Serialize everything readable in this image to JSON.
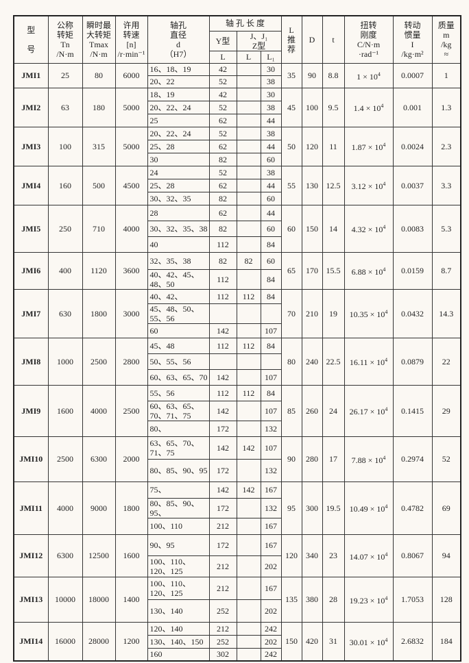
{
  "header": {
    "model": "型\n\n号",
    "tn": "公称\n转矩\nTn\n/N·m",
    "tmax": "瞬时最\n大转矩\nTmax\n/N·m",
    "speed": "许用\n转速\n[n]\n/r·min⁻¹",
    "bore": "轴孔\n直径\nd\n（H7）",
    "length_group": "轴 孔 长 度",
    "y_type": "Y型",
    "jz_type": "J、J₁\nZ型",
    "l_rec": "L\n推\n荐",
    "D": "D",
    "t": "t",
    "stiffness": "扭转\n刚度\nC/N·m\n·rad⁻¹",
    "inertia": "转动\n惯量\nI\n/kg·m²",
    "mass": "质量\nm\n/kg\n≈",
    "L": "L",
    "L1": "L₁"
  },
  "rows": [
    {
      "model": "JMI1",
      "tn": "25",
      "tmax": "80",
      "n": "6000",
      "L": "35",
      "D": "90",
      "t": "8.8",
      "C": "1 × 10",
      "I": "0.0007",
      "m": "1",
      "sub": [
        [
          "16、18、19",
          "42",
          "",
          "30"
        ],
        [
          "20、22",
          "52",
          "",
          "38"
        ]
      ]
    },
    {
      "model": "JMI2",
      "tn": "63",
      "tmax": "180",
      "n": "5000",
      "L": "45",
      "D": "100",
      "t": "9.5",
      "C": "1.4 × 10",
      "I": "0.001",
      "m": "1.3",
      "sub": [
        [
          "18、19",
          "42",
          "",
          "30"
        ],
        [
          "20、22、24",
          "52",
          "",
          "38"
        ],
        [
          "25",
          "62",
          "",
          "44"
        ]
      ]
    },
    {
      "model": "JMI3",
      "tn": "100",
      "tmax": "315",
      "n": "5000",
      "L": "50",
      "D": "120",
      "t": "11",
      "C": "1.87 × 10",
      "I": "0.0024",
      "m": "2.3",
      "sub": [
        [
          "20、22、24",
          "52",
          "",
          "38"
        ],
        [
          "25、28",
          "62",
          "",
          "44"
        ],
        [
          "30",
          "82",
          "",
          "60"
        ]
      ]
    },
    {
      "model": "JMI4",
      "tn": "160",
      "tmax": "500",
      "n": "4500",
      "L": "55",
      "D": "130",
      "t": "12.5",
      "C": "3.12 × 10",
      "I": "0.0037",
      "m": "3.3",
      "sub": [
        [
          "24",
          "52",
          "",
          "38"
        ],
        [
          "25、28",
          "62",
          "",
          "44"
        ],
        [
          "30、32、35",
          "82",
          "",
          "60"
        ]
      ]
    },
    {
      "model": "JMI5",
      "tn": "250",
      "tmax": "710",
      "n": "4000",
      "L": "60",
      "D": "150",
      "t": "14",
      "C": "4.32 × 10",
      "I": "0.0083",
      "m": "5.3",
      "sub": [
        [
          "28",
          "62",
          "",
          "44"
        ],
        [
          "30、32、35、38",
          "82",
          "",
          "60"
        ],
        [
          "40",
          "112",
          "",
          "84"
        ]
      ]
    },
    {
      "model": "JMI6",
      "tn": "400",
      "tmax": "1120",
      "n": "3600",
      "L": "65",
      "D": "170",
      "t": "15.5",
      "C": "6.88 × 10",
      "I": "0.0159",
      "m": "8.7",
      "sub": [
        [
          "32、35、38",
          "82",
          "82",
          "60"
        ],
        [
          "40、42、45、48、50",
          "112",
          "",
          "84"
        ]
      ]
    },
    {
      "model": "JMI7",
      "tn": "630",
      "tmax": "1800",
      "n": "3000",
      "L": "70",
      "D": "210",
      "t": "19",
      "C": "10.35 × 10",
      "I": "0.0432",
      "m": "14.3",
      "sub": [
        [
          "40、42、",
          "112",
          "112",
          "84"
        ],
        [
          "45、48、50、55、56",
          "",
          "",
          ""
        ],
        [
          "60",
          "142",
          "",
          "107"
        ]
      ]
    },
    {
      "model": "JMI8",
      "tn": "1000",
      "tmax": "2500",
      "n": "2800",
      "L": "80",
      "D": "240",
      "t": "22.5",
      "C": "16.11 × 10",
      "I": "0.0879",
      "m": "22",
      "sub": [
        [
          "45、48",
          "112",
          "112",
          "84"
        ],
        [
          "50、55、56",
          "",
          "",
          ""
        ],
        [
          "60、63、65、70",
          "142",
          "",
          "107"
        ]
      ]
    },
    {
      "model": "JMI9",
      "tn": "1600",
      "tmax": "4000",
      "n": "2500",
      "L": "85",
      "D": "260",
      "t": "24",
      "C": "26.17 × 10",
      "I": "0.1415",
      "m": "29",
      "sub": [
        [
          "55、56",
          "112",
          "112",
          "84"
        ],
        [
          "60、63、65、70、71、75",
          "142",
          "",
          "107"
        ],
        [
          "80、",
          "172",
          "",
          "132"
        ]
      ]
    },
    {
      "model": "JMI10",
      "tn": "2500",
      "tmax": "6300",
      "n": "2000",
      "L": "90",
      "D": "280",
      "t": "17",
      "C": "7.88 × 10",
      "I": "0.2974",
      "m": "52",
      "sub": [
        [
          "63、65、70、71、75",
          "142",
          "142",
          "107"
        ],
        [
          "80、85、90、95",
          "172",
          "",
          "132"
        ]
      ]
    },
    {
      "model": "JMI11",
      "tn": "4000",
      "tmax": "9000",
      "n": "1800",
      "L": "95",
      "D": "300",
      "t": "19.5",
      "C": "10.49 × 10",
      "I": "0.4782",
      "m": "69",
      "sub": [
        [
          "75、",
          "142",
          "142",
          "167"
        ],
        [
          "80、85、90、95、",
          "172",
          "",
          "132"
        ],
        [
          "100、110",
          "212",
          "",
          "167"
        ]
      ]
    },
    {
      "model": "JMI12",
      "tn": "6300",
      "tmax": "12500",
      "n": "1600",
      "L": "120",
      "D": "340",
      "t": "23",
      "C": "14.07 × 10",
      "I": "0.8067",
      "m": "94",
      "sub": [
        [
          "90、95",
          "172",
          "",
          "167"
        ],
        [
          "100、110、120、125",
          "212",
          "",
          "202"
        ]
      ]
    },
    {
      "model": "JMI13",
      "tn": "10000",
      "tmax": "18000",
      "n": "1400",
      "L": "135",
      "D": "380",
      "t": "28",
      "C": "19.23 × 10",
      "I": "1.7053",
      "m": "128",
      "sub": [
        [
          "100、110、120、125",
          "212",
          "",
          "167"
        ],
        [
          "130、140",
          "252",
          "",
          "202"
        ]
      ]
    },
    {
      "model": "JMI14",
      "tn": "16000",
      "tmax": "28000",
      "n": "1200",
      "L": "150",
      "D": "420",
      "t": "31",
      "C": "30.01 × 10",
      "I": "2.6832",
      "m": "184",
      "sub": [
        [
          "120、140",
          "212",
          "",
          "242"
        ],
        [
          "130、140、150",
          "252",
          "",
          "202"
        ],
        [
          "160",
          "302",
          "",
          "242"
        ]
      ]
    }
  ],
  "stiffness_exponent": "4"
}
